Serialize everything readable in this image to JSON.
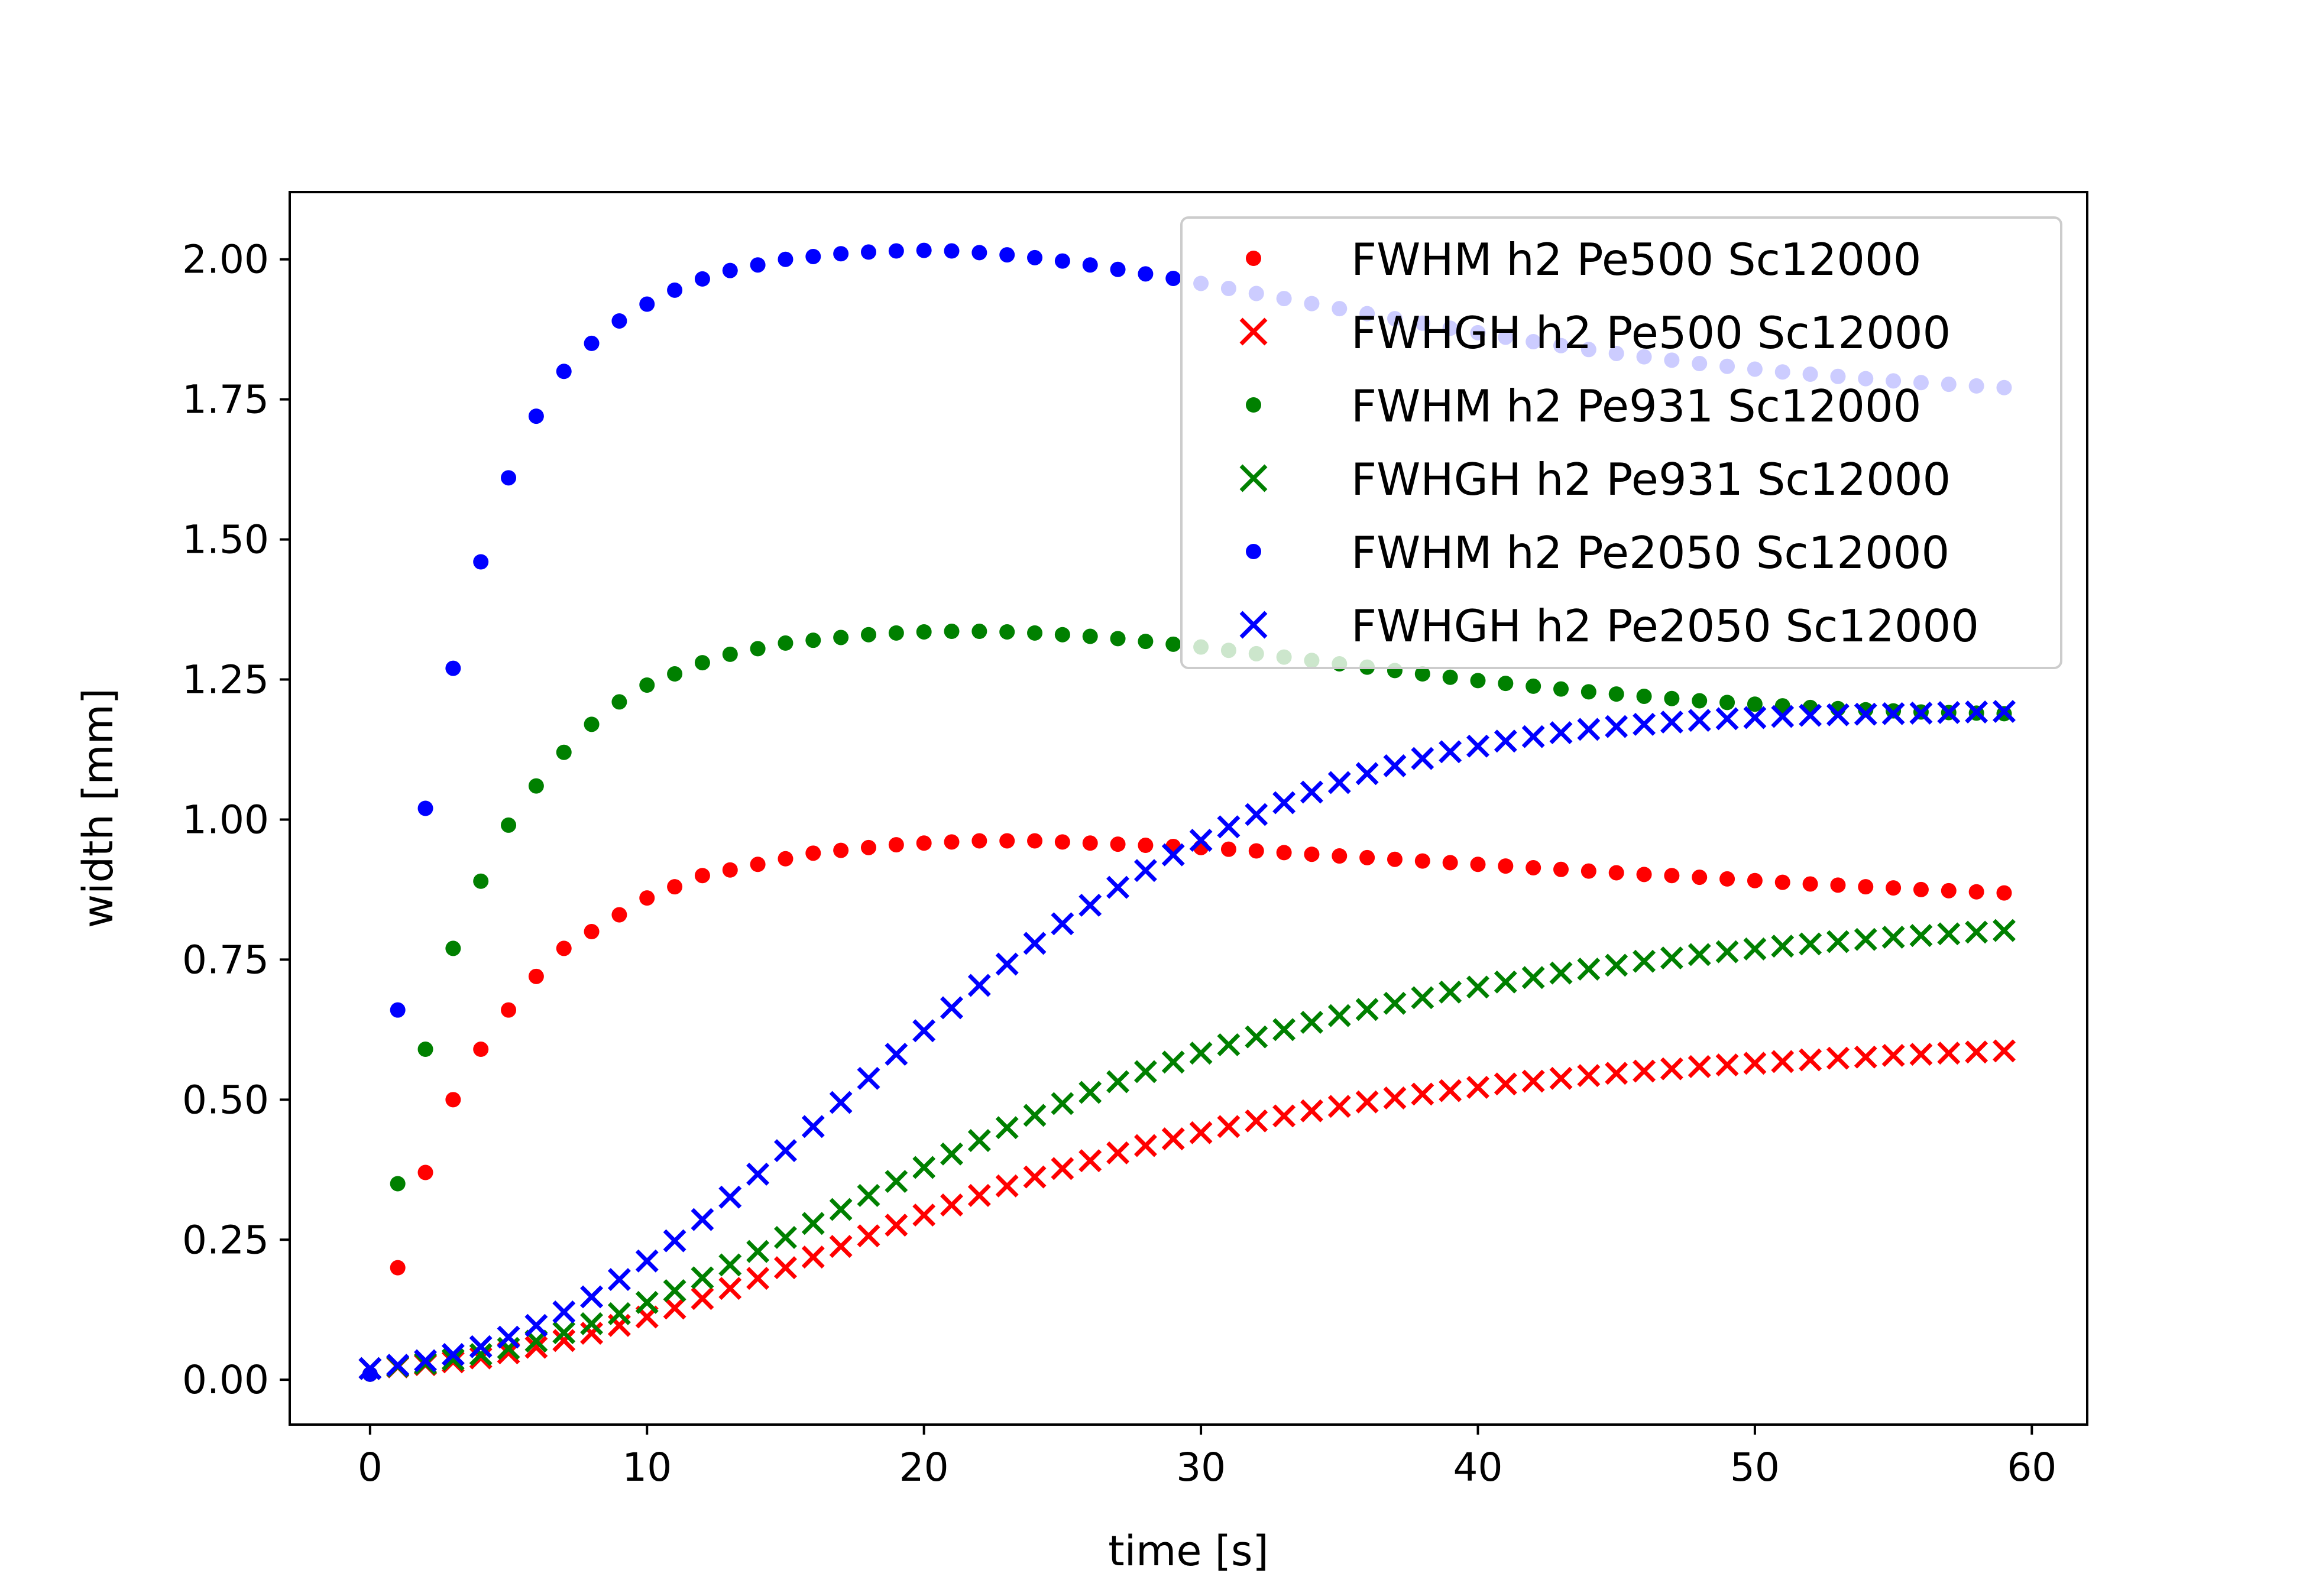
{
  "chart_data": {
    "type": "scatter",
    "title": "",
    "xlabel": "time [s]",
    "ylabel": "width [mm]",
    "xlim": [
      -2.9,
      62.0
    ],
    "ylim": [
      -0.08,
      2.12
    ],
    "xticks": [
      0,
      10,
      20,
      30,
      40,
      50,
      60
    ],
    "xtick_labels": [
      "0",
      "10",
      "20",
      "30",
      "40",
      "50",
      "60"
    ],
    "yticks": [
      0.0,
      0.25,
      0.5,
      0.75,
      1.0,
      1.25,
      1.5,
      1.75,
      2.0
    ],
    "ytick_labels": [
      "0.00",
      "0.25",
      "0.50",
      "0.75",
      "1.00",
      "1.25",
      "1.50",
      "1.75",
      "2.00"
    ],
    "grid": false,
    "legend_position": "top-right",
    "x": [
      0,
      1,
      2,
      3,
      4,
      5,
      6,
      7,
      8,
      9,
      10,
      11,
      12,
      13,
      14,
      15,
      16,
      17,
      18,
      19,
      20,
      21,
      22,
      23,
      24,
      25,
      26,
      27,
      28,
      29,
      30,
      31,
      32,
      33,
      34,
      35,
      36,
      37,
      38,
      39,
      40,
      41,
      42,
      43,
      44,
      45,
      46,
      47,
      48,
      49,
      50,
      51,
      52,
      53,
      54,
      55,
      56,
      57,
      58,
      59
    ],
    "series": [
      {
        "name": "FWHM h2 Pe500 Sc12000",
        "marker": "dot",
        "color": "#ff0000",
        "values": [
          0.01,
          0.2,
          0.37,
          0.5,
          0.59,
          0.66,
          0.72,
          0.77,
          0.8,
          0.83,
          0.86,
          0.88,
          0.9,
          0.91,
          0.92,
          0.93,
          0.94,
          0.945,
          0.95,
          0.955,
          0.958,
          0.96,
          0.962,
          0.962,
          0.962,
          0.96,
          0.958,
          0.956,
          0.954,
          0.952,
          0.95,
          0.947,
          0.944,
          0.941,
          0.938,
          0.935,
          0.932,
          0.929,
          0.926,
          0.923,
          0.92,
          0.917,
          0.914,
          0.911,
          0.908,
          0.905,
          0.902,
          0.9,
          0.897,
          0.894,
          0.891,
          0.888,
          0.885,
          0.883,
          0.88,
          0.878,
          0.875,
          0.873,
          0.871,
          0.869
        ]
      },
      {
        "name": "FWHGH h2 Pe500 Sc12000",
        "marker": "x",
        "color": "#ff0000",
        "values": [
          0.02,
          0.023,
          0.027,
          0.032,
          0.039,
          0.048,
          0.058,
          0.07,
          0.083,
          0.097,
          0.112,
          0.128,
          0.145,
          0.163,
          0.181,
          0.2,
          0.219,
          0.238,
          0.257,
          0.276,
          0.294,
          0.312,
          0.329,
          0.346,
          0.362,
          0.377,
          0.391,
          0.405,
          0.418,
          0.43,
          0.441,
          0.452,
          0.462,
          0.471,
          0.48,
          0.488,
          0.496,
          0.503,
          0.51,
          0.516,
          0.522,
          0.528,
          0.533,
          0.538,
          0.543,
          0.547,
          0.551,
          0.555,
          0.559,
          0.562,
          0.565,
          0.568,
          0.571,
          0.574,
          0.576,
          0.579,
          0.581,
          0.583,
          0.585,
          0.587
        ]
      },
      {
        "name": "FWHM h2 Pe931 Sc12000",
        "marker": "dot",
        "color": "#008000",
        "values": [
          0.01,
          0.35,
          0.59,
          0.77,
          0.89,
          0.99,
          1.06,
          1.12,
          1.17,
          1.21,
          1.24,
          1.26,
          1.28,
          1.295,
          1.305,
          1.315,
          1.32,
          1.325,
          1.33,
          1.333,
          1.335,
          1.336,
          1.336,
          1.335,
          1.333,
          1.33,
          1.327,
          1.323,
          1.318,
          1.313,
          1.308,
          1.302,
          1.296,
          1.29,
          1.284,
          1.278,
          1.272,
          1.266,
          1.26,
          1.254,
          1.248,
          1.243,
          1.238,
          1.233,
          1.228,
          1.224,
          1.22,
          1.216,
          1.212,
          1.209,
          1.206,
          1.203,
          1.2,
          1.198,
          1.196,
          1.194,
          1.192,
          1.191,
          1.19,
          1.189
        ]
      },
      {
        "name": "FWHGH h2 Pe931 Sc12000",
        "marker": "x",
        "color": "#008000",
        "values": [
          0.02,
          0.024,
          0.029,
          0.036,
          0.045,
          0.056,
          0.069,
          0.084,
          0.1,
          0.118,
          0.138,
          0.159,
          0.182,
          0.205,
          0.229,
          0.254,
          0.279,
          0.304,
          0.329,
          0.354,
          0.379,
          0.403,
          0.427,
          0.45,
          0.472,
          0.493,
          0.513,
          0.532,
          0.55,
          0.567,
          0.583,
          0.598,
          0.612,
          0.625,
          0.638,
          0.65,
          0.661,
          0.672,
          0.682,
          0.692,
          0.701,
          0.71,
          0.718,
          0.726,
          0.733,
          0.74,
          0.747,
          0.753,
          0.759,
          0.764,
          0.769,
          0.774,
          0.778,
          0.782,
          0.786,
          0.79,
          0.793,
          0.796,
          0.799,
          0.802
        ]
      },
      {
        "name": "FWHM h2 Pe2050 Sc12000",
        "marker": "dot",
        "color": "#0000ff",
        "values": [
          0.01,
          0.66,
          1.02,
          1.27,
          1.46,
          1.61,
          1.72,
          1.8,
          1.85,
          1.89,
          1.92,
          1.945,
          1.965,
          1.98,
          1.99,
          2.0,
          2.005,
          2.01,
          2.013,
          2.015,
          2.016,
          2.015,
          2.012,
          2.008,
          2.003,
          1.997,
          1.99,
          1.982,
          1.974,
          1.966,
          1.957,
          1.948,
          1.939,
          1.93,
          1.921,
          1.912,
          1.903,
          1.894,
          1.886,
          1.877,
          1.869,
          1.861,
          1.853,
          1.846,
          1.839,
          1.832,
          1.826,
          1.82,
          1.814,
          1.809,
          1.804,
          1.799,
          1.795,
          1.791,
          1.787,
          1.783,
          1.78,
          1.777,
          1.774,
          1.771
        ]
      },
      {
        "name": "FWHGH h2 Pe2050 Sc12000",
        "marker": "x",
        "color": "#0000ff",
        "values": [
          0.02,
          0.026,
          0.034,
          0.045,
          0.059,
          0.076,
          0.097,
          0.121,
          0.148,
          0.179,
          0.212,
          0.248,
          0.286,
          0.326,
          0.367,
          0.409,
          0.452,
          0.495,
          0.538,
          0.581,
          0.623,
          0.664,
          0.704,
          0.742,
          0.779,
          0.814,
          0.847,
          0.879,
          0.909,
          0.937,
          0.963,
          0.987,
          1.009,
          1.03,
          1.049,
          1.066,
          1.082,
          1.096,
          1.109,
          1.121,
          1.131,
          1.14,
          1.148,
          1.155,
          1.161,
          1.166,
          1.17,
          1.174,
          1.177,
          1.18,
          1.182,
          1.184,
          1.186,
          1.187,
          1.188,
          1.189,
          1.19,
          1.191,
          1.192,
          1.193
        ]
      }
    ]
  }
}
